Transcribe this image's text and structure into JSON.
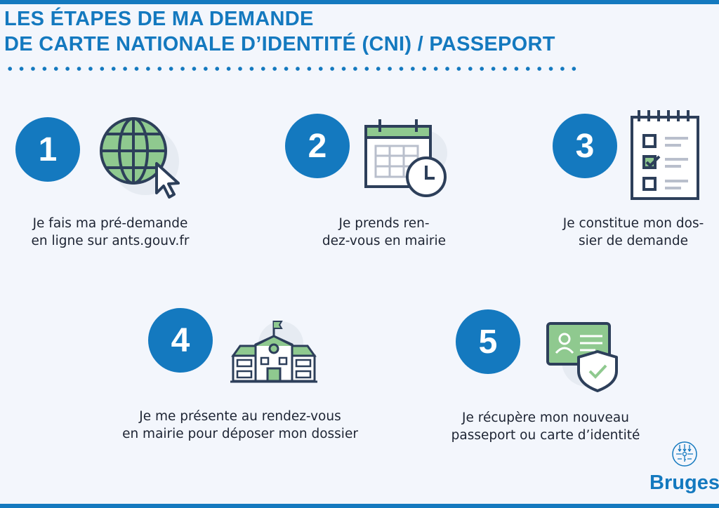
{
  "title": {
    "line1": "LES ÉTAPES DE MA DEMANDE",
    "line2": "DE CARTE NATIONALE D’IDENTITÉ (CNI) / PASSEPORT"
  },
  "colors": {
    "accent": "#1479bf",
    "green": "#8fc98f",
    "outline": "#2d3f5a",
    "background": "#f3f6fc"
  },
  "steps": [
    {
      "number": "1",
      "icon": "globe-cursor-icon",
      "line1": "Je fais ma pré-demande",
      "line2": "en ligne sur ants.gouv.fr"
    },
    {
      "number": "2",
      "icon": "calendar-clock-icon",
      "line1": "Je prends ren-",
      "line2": "dez-vous en mairie"
    },
    {
      "number": "3",
      "icon": "checklist-icon",
      "line1": "Je constitue mon dos-",
      "line2": "sier de demande"
    },
    {
      "number": "4",
      "icon": "town-hall-icon",
      "line1": "Je me présente au rendez-vous",
      "line2": "en mairie pour déposer mon dossier"
    },
    {
      "number": "5",
      "icon": "id-card-shield-icon",
      "line1": "Je récupère mon nouveau",
      "line2": "passeport ou carte d’identité"
    }
  ],
  "logo": {
    "text": "Bruges"
  }
}
